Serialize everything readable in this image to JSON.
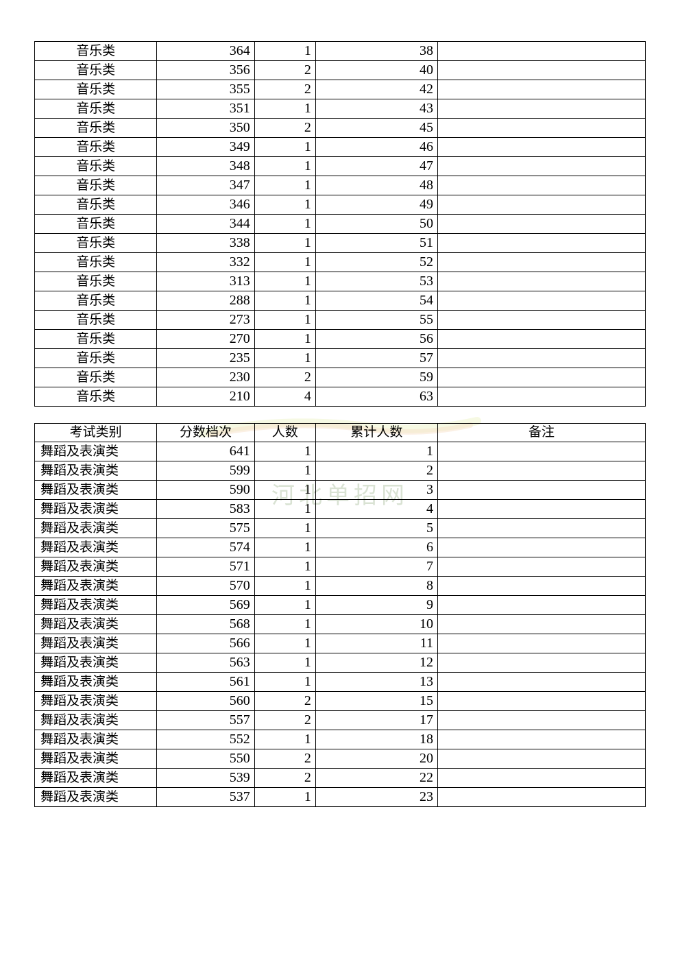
{
  "table1": {
    "rows": [
      {
        "cat": "音乐类",
        "score": "364",
        "count": "1",
        "cum": "38",
        "note": ""
      },
      {
        "cat": "音乐类",
        "score": "356",
        "count": "2",
        "cum": "40",
        "note": ""
      },
      {
        "cat": "音乐类",
        "score": "355",
        "count": "2",
        "cum": "42",
        "note": ""
      },
      {
        "cat": "音乐类",
        "score": "351",
        "count": "1",
        "cum": "43",
        "note": ""
      },
      {
        "cat": "音乐类",
        "score": "350",
        "count": "2",
        "cum": "45",
        "note": ""
      },
      {
        "cat": "音乐类",
        "score": "349",
        "count": "1",
        "cum": "46",
        "note": ""
      },
      {
        "cat": "音乐类",
        "score": "348",
        "count": "1",
        "cum": "47",
        "note": ""
      },
      {
        "cat": "音乐类",
        "score": "347",
        "count": "1",
        "cum": "48",
        "note": ""
      },
      {
        "cat": "音乐类",
        "score": "346",
        "count": "1",
        "cum": "49",
        "note": ""
      },
      {
        "cat": "音乐类",
        "score": "344",
        "count": "1",
        "cum": "50",
        "note": ""
      },
      {
        "cat": "音乐类",
        "score": "338",
        "count": "1",
        "cum": "51",
        "note": ""
      },
      {
        "cat": "音乐类",
        "score": "332",
        "count": "1",
        "cum": "52",
        "note": ""
      },
      {
        "cat": "音乐类",
        "score": "313",
        "count": "1",
        "cum": "53",
        "note": ""
      },
      {
        "cat": "音乐类",
        "score": "288",
        "count": "1",
        "cum": "54",
        "note": ""
      },
      {
        "cat": "音乐类",
        "score": "273",
        "count": "1",
        "cum": "55",
        "note": ""
      },
      {
        "cat": "音乐类",
        "score": "270",
        "count": "1",
        "cum": "56",
        "note": ""
      },
      {
        "cat": "音乐类",
        "score": "235",
        "count": "1",
        "cum": "57",
        "note": ""
      },
      {
        "cat": "音乐类",
        "score": "230",
        "count": "2",
        "cum": "59",
        "note": ""
      },
      {
        "cat": "音乐类",
        "score": "210",
        "count": "4",
        "cum": "63",
        "note": ""
      }
    ]
  },
  "table2": {
    "header": {
      "cat": "考试类别",
      "score": "分数档次",
      "count": "人数",
      "cum": "累计人数",
      "note": "备注"
    },
    "rows": [
      {
        "cat": "舞蹈及表演类",
        "score": "641",
        "count": "1",
        "cum": "1",
        "note": ""
      },
      {
        "cat": "舞蹈及表演类",
        "score": "599",
        "count": "1",
        "cum": "2",
        "note": ""
      },
      {
        "cat": "舞蹈及表演类",
        "score": "590",
        "count": "1",
        "cum": "3",
        "note": ""
      },
      {
        "cat": "舞蹈及表演类",
        "score": "583",
        "count": "1",
        "cum": "4",
        "note": ""
      },
      {
        "cat": "舞蹈及表演类",
        "score": "575",
        "count": "1",
        "cum": "5",
        "note": ""
      },
      {
        "cat": "舞蹈及表演类",
        "score": "574",
        "count": "1",
        "cum": "6",
        "note": ""
      },
      {
        "cat": "舞蹈及表演类",
        "score": "571",
        "count": "1",
        "cum": "7",
        "note": ""
      },
      {
        "cat": "舞蹈及表演类",
        "score": "570",
        "count": "1",
        "cum": "8",
        "note": ""
      },
      {
        "cat": "舞蹈及表演类",
        "score": "569",
        "count": "1",
        "cum": "9",
        "note": ""
      },
      {
        "cat": "舞蹈及表演类",
        "score": "568",
        "count": "1",
        "cum": "10",
        "note": ""
      },
      {
        "cat": "舞蹈及表演类",
        "score": "566",
        "count": "1",
        "cum": "11",
        "note": ""
      },
      {
        "cat": "舞蹈及表演类",
        "score": "563",
        "count": "1",
        "cum": "12",
        "note": ""
      },
      {
        "cat": "舞蹈及表演类",
        "score": "561",
        "count": "1",
        "cum": "13",
        "note": ""
      },
      {
        "cat": "舞蹈及表演类",
        "score": "560",
        "count": "2",
        "cum": "15",
        "note": ""
      },
      {
        "cat": "舞蹈及表演类",
        "score": "557",
        "count": "2",
        "cum": "17",
        "note": ""
      },
      {
        "cat": "舞蹈及表演类",
        "score": "552",
        "count": "1",
        "cum": "18",
        "note": ""
      },
      {
        "cat": "舞蹈及表演类",
        "score": "550",
        "count": "2",
        "cum": "20",
        "note": ""
      },
      {
        "cat": "舞蹈及表演类",
        "score": "539",
        "count": "2",
        "cum": "22",
        "note": ""
      },
      {
        "cat": "舞蹈及表演类",
        "score": "537",
        "count": "1",
        "cum": "23",
        "note": ""
      }
    ]
  },
  "watermark": {
    "line1": "",
    "line2": "河北单招网"
  }
}
